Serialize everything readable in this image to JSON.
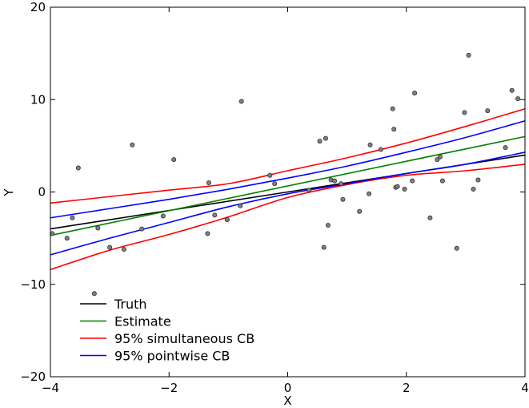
{
  "chart_data": {
    "type": "scatter",
    "title": "",
    "xlabel": "X",
    "ylabel": "Y",
    "xlim": [
      -4,
      4
    ],
    "ylim": [
      -20,
      20
    ],
    "xticks": [
      -4,
      -2,
      0,
      2,
      4
    ],
    "yticks": [
      -20,
      -10,
      0,
      10,
      20
    ],
    "xtick_labels": [
      "−4",
      "−2",
      "0",
      "2",
      "4"
    ],
    "ytick_labels": [
      "−20",
      "−10",
      "0",
      "10",
      "20"
    ],
    "grid": false,
    "legend_position": "bottom-left",
    "points": {
      "color": "#808080",
      "x": [
        -3.97,
        -3.72,
        -3.63,
        -3.53,
        -3.26,
        -3.2,
        -3.0,
        -2.76,
        -2.62,
        -2.46,
        -2.1,
        -1.92,
        -1.35,
        -1.33,
        -1.23,
        -1.02,
        -0.8,
        -0.78,
        -0.3,
        -0.22,
        0.36,
        0.54,
        0.61,
        0.64,
        0.68,
        0.73,
        0.79,
        0.9,
        0.93,
        1.21,
        1.37,
        1.39,
        1.57,
        1.77,
        1.79,
        1.82,
        1.85,
        1.97,
        2.1,
        2.14,
        2.4,
        2.52,
        2.57,
        2.61,
        2.85,
        2.98,
        3.05,
        3.13,
        3.21,
        3.37,
        3.67,
        3.78,
        3.88
      ],
      "y": [
        -4.5,
        -5.0,
        -2.8,
        2.6,
        -11.0,
        -3.9,
        -6.0,
        -6.2,
        5.1,
        -4.0,
        -2.6,
        3.5,
        -4.5,
        1.0,
        -2.5,
        -3.0,
        -1.5,
        9.8,
        1.8,
        0.9,
        0.2,
        5.5,
        -6.0,
        5.8,
        -3.6,
        1.3,
        1.2,
        0.9,
        -0.8,
        -2.1,
        -0.2,
        5.1,
        4.6,
        9.0,
        6.8,
        0.5,
        0.6,
        0.3,
        1.2,
        10.7,
        -2.8,
        3.5,
        3.8,
        1.2,
        -6.1,
        8.6,
        14.8,
        0.3,
        1.3,
        8.8,
        4.8,
        11.0,
        10.1
      ]
    },
    "series": [
      {
        "name": "Truth",
        "color": "#000000",
        "x": [
          -4,
          4
        ],
        "y": [
          -4.0,
          4.0
        ]
      },
      {
        "name": "Estimate",
        "color": "#008000",
        "x": [
          -4,
          4
        ],
        "y": [
          -4.7,
          6.0
        ]
      },
      {
        "name": "95% simultaneous CB",
        "color": "#ff0000",
        "x": [
          -4,
          -3,
          -2,
          -1,
          0,
          1,
          2,
          3,
          4
        ],
        "upper": [
          -1.2,
          -0.5,
          0.2,
          0.9,
          2.3,
          3.7,
          5.3,
          7.1,
          9.0
        ],
        "lower": [
          -8.4,
          -6.3,
          -4.6,
          -2.7,
          -0.6,
          0.8,
          1.8,
          2.3,
          3.0
        ]
      },
      {
        "name": "95% pointwise CB",
        "color": "#0000ff",
        "x": [
          -4,
          -3,
          -2,
          -1,
          0,
          1,
          2,
          3,
          4
        ],
        "upper": [
          -2.8,
          -1.8,
          -0.8,
          0.3,
          1.5,
          2.8,
          4.3,
          5.9,
          7.7
        ],
        "lower": [
          -6.8,
          -5.0,
          -3.3,
          -1.6,
          -0.2,
          0.9,
          2.0,
          3.0,
          4.3
        ]
      }
    ]
  }
}
